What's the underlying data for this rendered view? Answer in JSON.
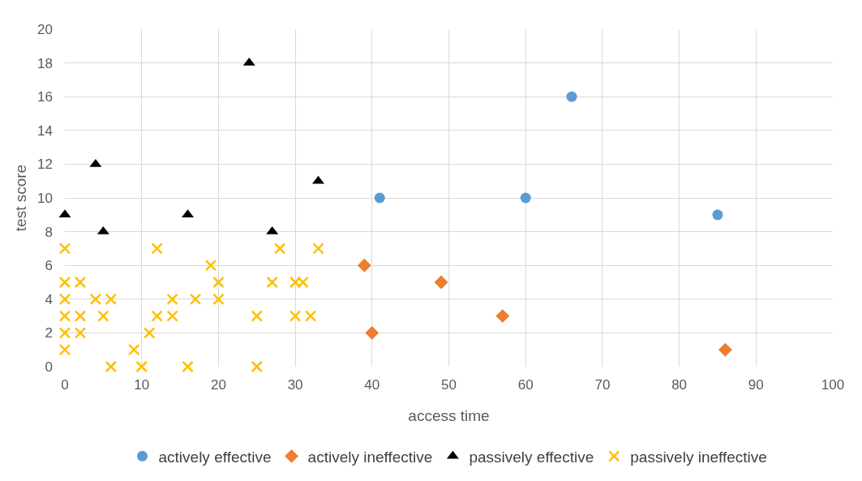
{
  "chart_data": {
    "type": "scatter",
    "xlabel": "access time",
    "ylabel": "test score",
    "xlim": [
      0,
      100
    ],
    "xticks": [
      0,
      10,
      20,
      30,
      40,
      50,
      60,
      70,
      80,
      90,
      100
    ],
    "ylim": [
      0,
      20
    ],
    "yticks": [
      0,
      2,
      4,
      6,
      8,
      10,
      12,
      14,
      16,
      18,
      20
    ],
    "grid": true,
    "legend": "bottom",
    "series": [
      {
        "name": "actively effective",
        "color": "#5b9bd5",
        "marker": "circle",
        "x": [
          41,
          60,
          66,
          85
        ],
        "values": [
          10,
          10,
          16,
          9
        ]
      },
      {
        "name": "actively ineffective",
        "color": "#ed7d31",
        "marker": "diamond",
        "x": [
          39,
          40,
          49,
          57,
          86
        ],
        "values": [
          6,
          2,
          5,
          3,
          1
        ]
      },
      {
        "name": "passively effective",
        "color": "#000000",
        "marker": "triangle",
        "x": [
          0,
          4,
          5,
          16,
          24,
          27,
          33
        ],
        "values": [
          9,
          12,
          8,
          9,
          18,
          8,
          11
        ]
      },
      {
        "name": "passively ineffective",
        "color": "#ffc000",
        "marker": "cross",
        "x": [
          0,
          0,
          0,
          0,
          0,
          0,
          2,
          2,
          2,
          4,
          5,
          6,
          6,
          9,
          10,
          11,
          12,
          12,
          14,
          14,
          16,
          17,
          19,
          20,
          20,
          25,
          25,
          27,
          28,
          30,
          31,
          30,
          32,
          33
        ],
        "values": [
          7,
          5,
          4,
          3,
          2,
          1,
          5,
          3,
          2,
          4,
          3,
          4,
          0,
          1,
          0,
          2,
          7,
          3,
          4,
          3,
          0,
          4,
          6,
          5,
          4,
          3,
          0,
          5,
          7,
          5,
          5,
          3,
          3,
          7
        ]
      }
    ]
  }
}
